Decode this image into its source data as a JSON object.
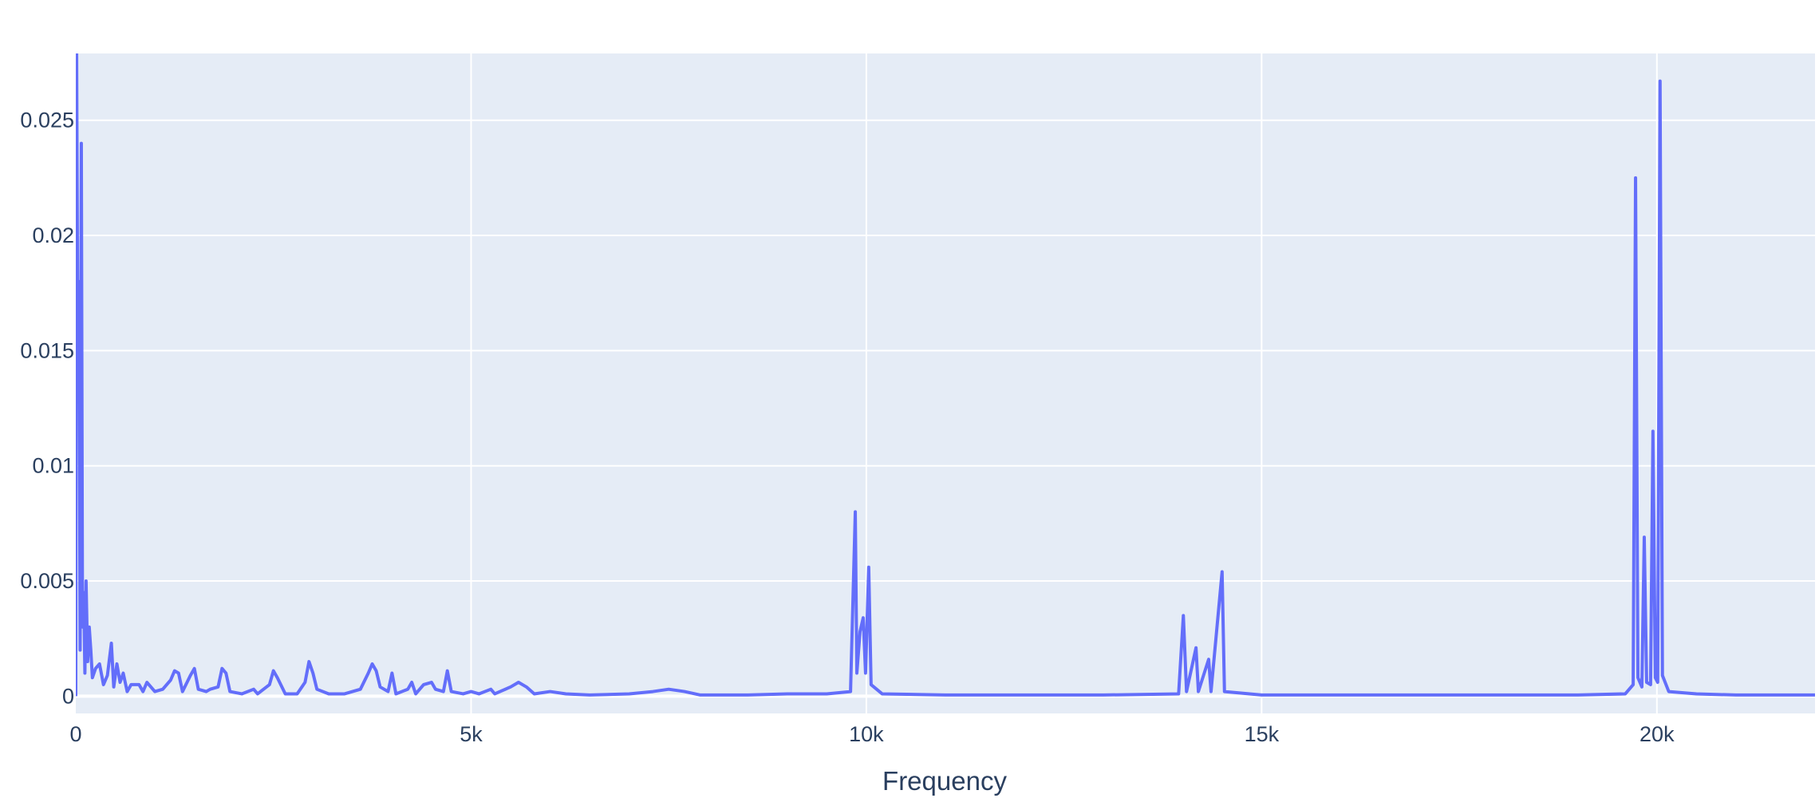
{
  "chart_data": {
    "type": "line",
    "title": "",
    "xlabel": "Frequency",
    "ylabel": "",
    "xlim": [
      0,
      22000
    ],
    "ylim": [
      -0.00075,
      0.0279
    ],
    "x_ticks": [
      {
        "value": 0,
        "label": "0"
      },
      {
        "value": 5000,
        "label": "5k"
      },
      {
        "value": 10000,
        "label": "10k"
      },
      {
        "value": 15000,
        "label": "15k"
      },
      {
        "value": 20000,
        "label": "20k"
      }
    ],
    "y_ticks": [
      {
        "value": 0,
        "label": "0"
      },
      {
        "value": 0.005,
        "label": "0.005"
      },
      {
        "value": 0.01,
        "label": "0.01"
      },
      {
        "value": 0.015,
        "label": "0.015"
      },
      {
        "value": 0.02,
        "label": "0.02"
      },
      {
        "value": 0.025,
        "label": "0.025"
      }
    ],
    "grid": true,
    "legend": "none",
    "colors": {
      "line": "#636efa",
      "plot_bg": "#e5ecf6",
      "grid": "#ffffff",
      "text": "#2a3f5f"
    },
    "series": [
      {
        "points": [
          [
            0,
            0.0
          ],
          [
            10,
            0.0285
          ],
          [
            25,
            0.015
          ],
          [
            40,
            0.018
          ],
          [
            55,
            0.002
          ],
          [
            70,
            0.024
          ],
          [
            85,
            0.003
          ],
          [
            100,
            0.0045
          ],
          [
            115,
            0.001
          ],
          [
            130,
            0.005
          ],
          [
            150,
            0.0015
          ],
          [
            170,
            0.003
          ],
          [
            190,
            0.002
          ],
          [
            210,
            0.0008
          ],
          [
            250,
            0.0012
          ],
          [
            300,
            0.0014
          ],
          [
            350,
            0.0005
          ],
          [
            400,
            0.0009
          ],
          [
            450,
            0.0023
          ],
          [
            480,
            0.0004
          ],
          [
            520,
            0.0014
          ],
          [
            560,
            0.0006
          ],
          [
            600,
            0.001
          ],
          [
            650,
            0.0002
          ],
          [
            700,
            0.0005
          ],
          [
            800,
            0.0005
          ],
          [
            850,
            0.0002
          ],
          [
            900,
            0.0006
          ],
          [
            1000,
            0.0002
          ],
          [
            1100,
            0.0003
          ],
          [
            1200,
            0.0007
          ],
          [
            1250,
            0.0011
          ],
          [
            1300,
            0.001
          ],
          [
            1350,
            0.0002
          ],
          [
            1450,
            0.0009
          ],
          [
            1500,
            0.0012
          ],
          [
            1550,
            0.0003
          ],
          [
            1650,
            0.0002
          ],
          [
            1700,
            0.0003
          ],
          [
            1800,
            0.0004
          ],
          [
            1850,
            0.0012
          ],
          [
            1900,
            0.001
          ],
          [
            1950,
            0.0002
          ],
          [
            2100,
            0.0001
          ],
          [
            2250,
            0.0003
          ],
          [
            2300,
            0.0001
          ],
          [
            2450,
            0.0005
          ],
          [
            2500,
            0.0011
          ],
          [
            2550,
            0.0008
          ],
          [
            2650,
            0.0001
          ],
          [
            2800,
            0.0001
          ],
          [
            2900,
            0.0006
          ],
          [
            2950,
            0.0015
          ],
          [
            3000,
            0.001
          ],
          [
            3050,
            0.0003
          ],
          [
            3200,
            0.0001
          ],
          [
            3400,
            0.0001
          ],
          [
            3600,
            0.0003
          ],
          [
            3700,
            0.001
          ],
          [
            3750,
            0.0014
          ],
          [
            3800,
            0.0011
          ],
          [
            3850,
            0.0004
          ],
          [
            3950,
            0.0002
          ],
          [
            4000,
            0.001
          ],
          [
            4050,
            0.0001
          ],
          [
            4200,
            0.0003
          ],
          [
            4250,
            0.0006
          ],
          [
            4300,
            0.0001
          ],
          [
            4400,
            0.0005
          ],
          [
            4500,
            0.0006
          ],
          [
            4550,
            0.0003
          ],
          [
            4650,
            0.0002
          ],
          [
            4700,
            0.0011
          ],
          [
            4750,
            0.0002
          ],
          [
            4900,
            0.0001
          ],
          [
            5000,
            0.0002
          ],
          [
            5100,
            0.0001
          ],
          [
            5250,
            0.0003
          ],
          [
            5300,
            0.0001
          ],
          [
            5500,
            0.0004
          ],
          [
            5600,
            0.0006
          ],
          [
            5700,
            0.0004
          ],
          [
            5800,
            0.0001
          ],
          [
            6000,
            0.0002
          ],
          [
            6200,
            0.0001
          ],
          [
            6500,
            5e-05
          ],
          [
            7000,
            0.0001
          ],
          [
            7300,
            0.0002
          ],
          [
            7500,
            0.0003
          ],
          [
            7700,
            0.0002
          ],
          [
            7900,
            5e-05
          ],
          [
            8500,
            5e-05
          ],
          [
            9000,
            0.0001
          ],
          [
            9500,
            0.0001
          ],
          [
            9800,
            0.0002
          ],
          [
            9860,
            0.008
          ],
          [
            9880,
            0.001
          ],
          [
            9920,
            0.0028
          ],
          [
            9960,
            0.0034
          ],
          [
            9990,
            0.001
          ],
          [
            10030,
            0.0056
          ],
          [
            10060,
            0.0005
          ],
          [
            10200,
            0.0001
          ],
          [
            11000,
            5e-05
          ],
          [
            12000,
            5e-05
          ],
          [
            13000,
            5e-05
          ],
          [
            13950,
            0.0001
          ],
          [
            14010,
            0.0035
          ],
          [
            14050,
            0.0002
          ],
          [
            14170,
            0.0021
          ],
          [
            14200,
            0.0002
          ],
          [
            14330,
            0.0016
          ],
          [
            14360,
            0.0002
          ],
          [
            14500,
            0.0054
          ],
          [
            14530,
            0.0002
          ],
          [
            15000,
            5e-05
          ],
          [
            16000,
            5e-05
          ],
          [
            17000,
            5e-05
          ],
          [
            18000,
            5e-05
          ],
          [
            19000,
            5e-05
          ],
          [
            19600,
            0.0001
          ],
          [
            19700,
            0.0005
          ],
          [
            19730,
            0.0225
          ],
          [
            19760,
            0.0008
          ],
          [
            19810,
            0.0004
          ],
          [
            19840,
            0.0069
          ],
          [
            19870,
            0.0006
          ],
          [
            19920,
            0.0005
          ],
          [
            19950,
            0.0115
          ],
          [
            19980,
            0.0008
          ],
          [
            20010,
            0.0006
          ],
          [
            20040,
            0.0267
          ],
          [
            20070,
            0.0009
          ],
          [
            20150,
            0.0002
          ],
          [
            20500,
            0.0001
          ],
          [
            21000,
            5e-05
          ],
          [
            22000,
            5e-05
          ]
        ]
      }
    ]
  }
}
